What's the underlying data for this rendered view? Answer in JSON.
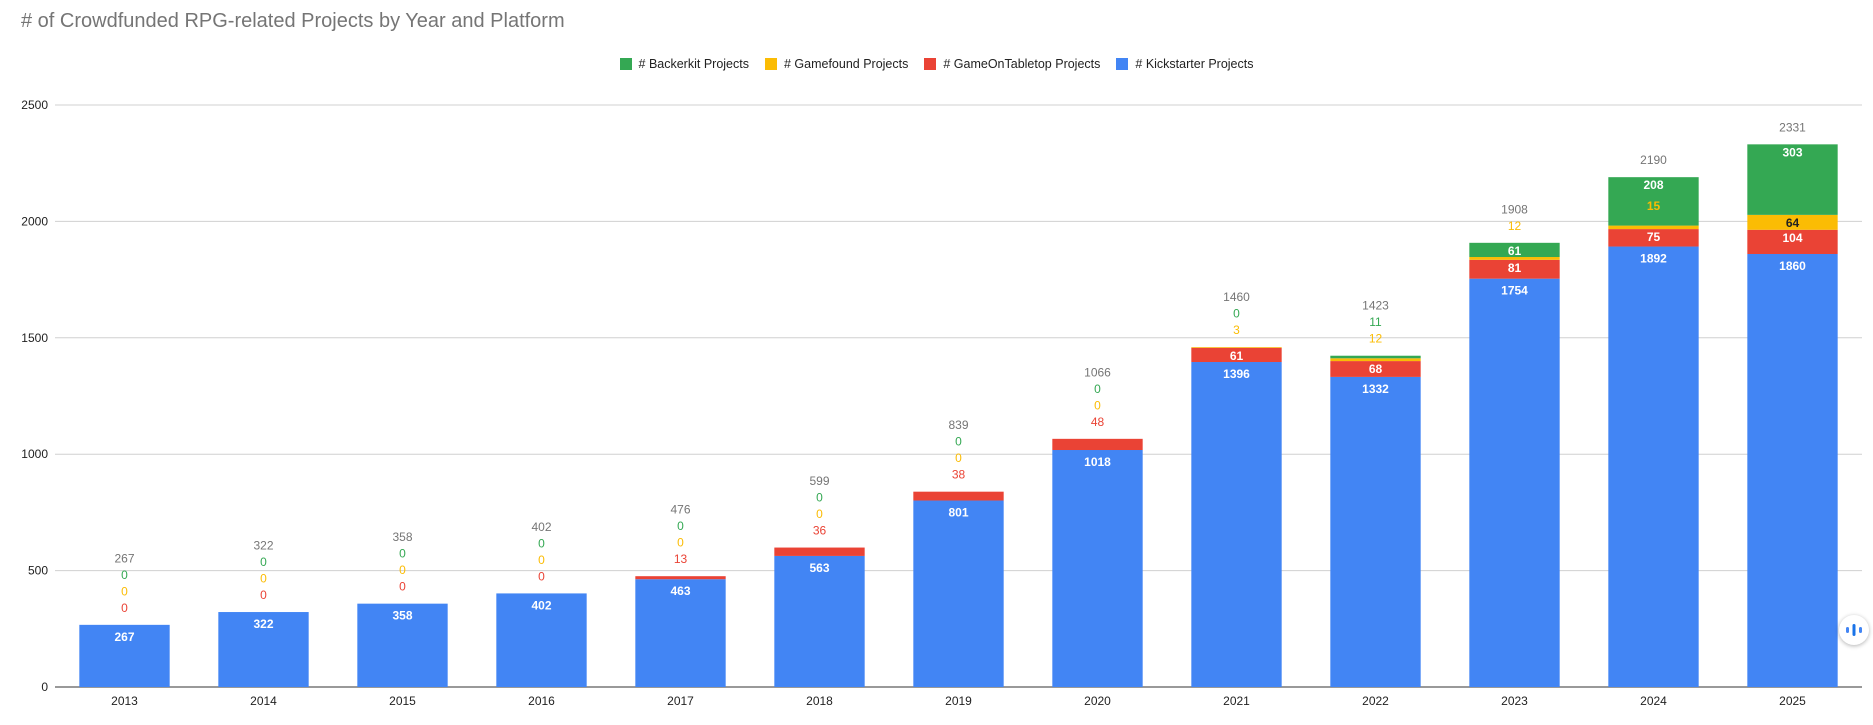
{
  "chart_data": {
    "type": "bar",
    "stacked": true,
    "title": "# of Crowdfunded RPG-related Projects by Year and Platform",
    "categories": [
      "2013",
      "2014",
      "2015",
      "2016",
      "2017",
      "2018",
      "2019",
      "2020",
      "2021",
      "2022",
      "2023",
      "2024",
      "2025"
    ],
    "series": [
      {
        "name": "# Kickstarter Projects",
        "color": "#4285f4",
        "values": [
          267,
          322,
          358,
          402,
          463,
          563,
          801,
          1018,
          1396,
          1332,
          1754,
          1892,
          1860
        ]
      },
      {
        "name": "# GameOnTabletop Projects",
        "color": "#ea4335",
        "values": [
          0,
          0,
          0,
          0,
          13,
          36,
          38,
          48,
          61,
          68,
          81,
          75,
          104
        ]
      },
      {
        "name": "# Gamefound Projects",
        "color": "#fbbc04",
        "values": [
          0,
          0,
          0,
          0,
          0,
          0,
          0,
          0,
          3,
          12,
          12,
          15,
          64
        ]
      },
      {
        "name": "# Backerkit Projects",
        "color": "#34a853",
        "values": [
          0,
          0,
          0,
          0,
          0,
          0,
          0,
          0,
          0,
          11,
          61,
          208,
          303
        ]
      }
    ],
    "totals": [
      267,
      322,
      358,
      402,
      476,
      599,
      839,
      1066,
      1460,
      1423,
      1908,
      2190,
      2331
    ],
    "legend_order": [
      3,
      2,
      1,
      0
    ],
    "legend_position": "top",
    "ylim": [
      0,
      2500
    ],
    "yticks": [
      0,
      500,
      1000,
      1500,
      2000,
      2500
    ],
    "grid": true,
    "xlabel": "",
    "ylabel": ""
  }
}
